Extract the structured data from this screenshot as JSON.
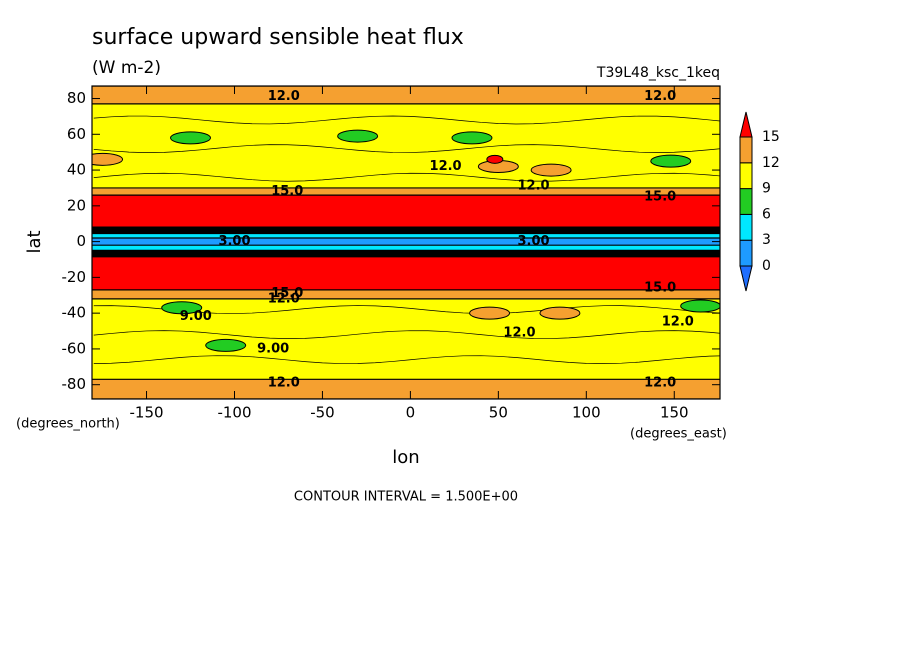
{
  "chart_data": {
    "type": "contour",
    "title": "surface upward sensible heat flux",
    "subtitle": "(W m-2)",
    "dataset": "T39L48_ksc_1keq",
    "x_label": "lon",
    "y_label": "lat",
    "x_units": "(degrees_east)",
    "y_units": "(degrees_north)",
    "footer": "CONTOUR INTERVAL = 1.500E+00",
    "xlim": [
      -181,
      176
    ],
    "ylim": [
      -88,
      87
    ],
    "xticks": [
      -150,
      -100,
      -50,
      0,
      50,
      100,
      150
    ],
    "yticks": [
      -80,
      -60,
      -40,
      -20,
      0,
      20,
      40,
      60,
      80
    ],
    "levels": [
      0,
      3,
      6,
      9,
      12,
      15
    ],
    "colors": [
      "#1e6eff",
      "#1e9bff",
      "#00e8ff",
      "#22cc22",
      "#ffff00",
      "#f5a030",
      "#ff0000"
    ],
    "field": {
      "lat_edges": [
        87,
        77,
        30,
        26,
        8,
        5,
        2,
        -2,
        -5,
        -8,
        -27,
        -32,
        -77,
        -88
      ],
      "values": [
        13,
        10.5,
        13.5,
        18,
        16,
        4,
        2,
        4,
        16,
        18,
        13.5,
        10.5,
        13
      ]
    },
    "patches": [
      {
        "lon": -125,
        "lat": 58,
        "value": 7.5
      },
      {
        "lon": -30,
        "lat": 59,
        "value": 7.5
      },
      {
        "lon": 35,
        "lat": 58,
        "value": 7.5
      },
      {
        "lon": 148,
        "lat": 45,
        "value": 7.5
      },
      {
        "lon": -130,
        "lat": -37,
        "value": 7.5
      },
      {
        "lon": -105,
        "lat": -58,
        "value": 7.5
      },
      {
        "lon": 165,
        "lat": -36,
        "value": 7.5
      },
      {
        "lon": 50,
        "lat": 42,
        "value": 13
      },
      {
        "lon": 80,
        "lat": 40,
        "value": 13
      },
      {
        "lon": -175,
        "lat": 46,
        "value": 13
      },
      {
        "lon": 45,
        "lat": -40,
        "value": 13
      },
      {
        "lon": 85,
        "lat": -40,
        "value": 13
      },
      {
        "lon": 48,
        "lat": 46,
        "value": 16
      }
    ],
    "contour_labels": [
      {
        "lon": -72,
        "lat": 81,
        "value": 12,
        "label": "12.0"
      },
      {
        "lon": 142,
        "lat": 81,
        "value": 12,
        "label": "12.0"
      },
      {
        "lon": -72,
        "lat": -79,
        "value": 12,
        "label": "12.0"
      },
      {
        "lon": 142,
        "lat": -79,
        "value": 12,
        "label": "12.0"
      },
      {
        "lon": -70,
        "lat": 28,
        "value": 15,
        "label": "15.0"
      },
      {
        "lon": 142,
        "lat": 25,
        "value": 15,
        "label": "15.0"
      },
      {
        "lon": 70,
        "lat": 31,
        "value": 12,
        "label": "12.0"
      },
      {
        "lon": 20,
        "lat": 42,
        "value": 12,
        "label": "12.0"
      },
      {
        "lon": -70,
        "lat": -29,
        "value": 15,
        "label": "15.0"
      },
      {
        "lon": -72,
        "lat": -32,
        "value": 12,
        "label": "12.0"
      },
      {
        "lon": 142,
        "lat": -26,
        "value": 15,
        "label": "15.0"
      },
      {
        "lon": 62,
        "lat": -51,
        "value": 12,
        "label": "12.0"
      },
      {
        "lon": 152,
        "lat": -45,
        "value": 12,
        "label": "12.0"
      },
      {
        "lon": -122,
        "lat": -42,
        "value": 9,
        "label": "9.00"
      },
      {
        "lon": -78,
        "lat": -60,
        "value": 9,
        "label": "9.00"
      },
      {
        "lon": 70,
        "lat": 0,
        "value": 3,
        "label": "3.00"
      },
      {
        "lon": -100,
        "lat": 0,
        "value": 3,
        "label": "3.00"
      }
    ]
  }
}
